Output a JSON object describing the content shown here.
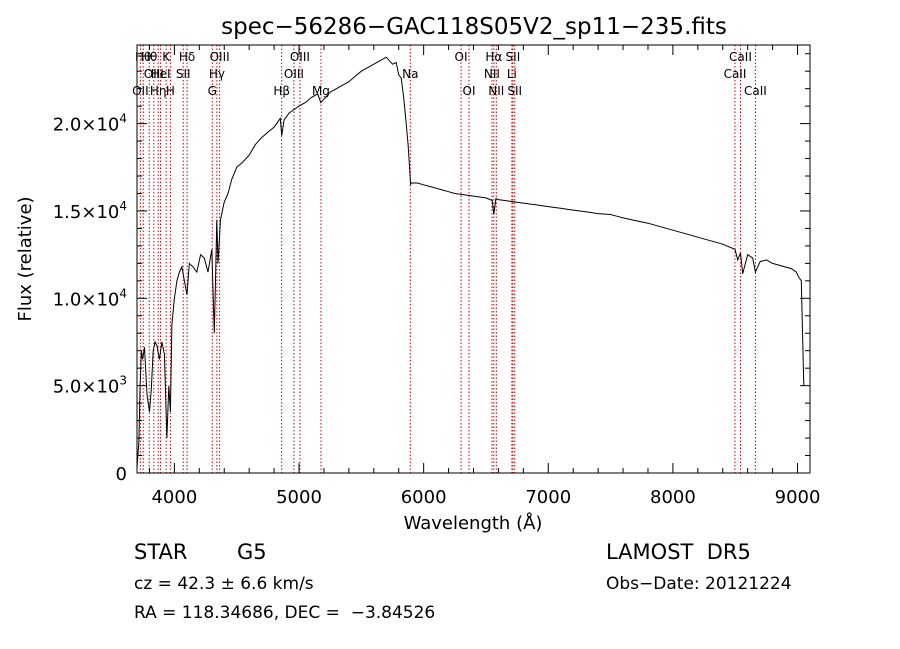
{
  "chart_data": {
    "type": "line",
    "title": "spec−56286−GAC118S05V2_sp11−235.fits",
    "xlabel": "Wavelength (Å)",
    "ylabel": "Flux (relative)",
    "xlim": [
      3700,
      9100
    ],
    "ylim": [
      0,
      24500
    ],
    "x_ticks": [
      {
        "value": 4000,
        "label": "4000"
      },
      {
        "value": 5000,
        "label": "5000"
      },
      {
        "value": 6000,
        "label": "6000"
      },
      {
        "value": 7000,
        "label": "7000"
      },
      {
        "value": 8000,
        "label": "8000"
      },
      {
        "value": 9000,
        "label": "9000"
      }
    ],
    "y_ticks": [
      {
        "value": 0,
        "mant": "0",
        "exp": ""
      },
      {
        "value": 5000,
        "mant": "5.0×10",
        "exp": "3"
      },
      {
        "value": 10000,
        "mant": "1.0×10",
        "exp": "4"
      },
      {
        "value": 15000,
        "mant": "1.5×10",
        "exp": "4"
      },
      {
        "value": 20000,
        "mant": "2.0×10",
        "exp": "4"
      }
    ],
    "series": [
      {
        "x": [
          3700,
          3715,
          3725,
          3735,
          3745,
          3760,
          3780,
          3800,
          3815,
          3830,
          3845,
          3860,
          3880,
          3900,
          3920,
          3940,
          3955,
          3968,
          3980,
          4000,
          4020,
          4040,
          4060,
          4080,
          4101,
          4120,
          4150,
          4180,
          4210,
          4240,
          4270,
          4300,
          4320,
          4330,
          4340,
          4350,
          4370,
          4400,
          4430,
          4460,
          4500,
          4550,
          4600,
          4650,
          4700,
          4750,
          4800,
          4850,
          4861,
          4880,
          4920,
          4960,
          5000,
          5050,
          5100,
          5150,
          5175,
          5200,
          5250,
          5300,
          5350,
          5400,
          5450,
          5500,
          5550,
          5600,
          5650,
          5700,
          5750,
          5780,
          5800,
          5820,
          5840,
          5860,
          5875,
          5890,
          5895,
          5900,
          5910,
          5950,
          6000,
          6050,
          6100,
          6150,
          6200,
          6250,
          6300,
          6350,
          6400,
          6450,
          6500,
          6550,
          6563,
          6580,
          6600,
          6650,
          6700,
          6750,
          6800,
          6850,
          6900,
          6950,
          7000,
          7050,
          7100,
          7150,
          7200,
          7300,
          7400,
          7500,
          7550,
          7600,
          7700,
          7800,
          7900,
          8000,
          8100,
          8200,
          8300,
          8400,
          8498,
          8520,
          8542,
          8560,
          8600,
          8640,
          8662,
          8700,
          8750,
          8800,
          8850,
          8900,
          8950,
          8990,
          9010,
          9030,
          9050
        ],
        "y": [
          300,
          1800,
          5000,
          7000,
          6500,
          7200,
          4500,
          3500,
          4800,
          7000,
          7500,
          7300,
          6500,
          7500,
          6800,
          2000,
          5000,
          3500,
          8500,
          10000,
          11000,
          11500,
          11800,
          11000,
          10200,
          12000,
          11800,
          11500,
          12500,
          12300,
          11500,
          12800,
          8000,
          11000,
          14500,
          12000,
          14500,
          15500,
          16000,
          16800,
          17500,
          17800,
          18200,
          18800,
          19200,
          19500,
          19800,
          20300,
          19300,
          20200,
          20600,
          20800,
          21000,
          21200,
          21500,
          21700,
          21200,
          21400,
          21800,
          22000,
          22200,
          22400,
          22700,
          23000,
          23200,
          23400,
          23600,
          23800,
          23400,
          23500,
          22800,
          22600,
          21500,
          20000,
          18800,
          17200,
          16500,
          16600,
          16600,
          16600,
          16500,
          16400,
          16300,
          16200,
          16100,
          16000,
          15950,
          15900,
          15850,
          15800,
          15750,
          15600,
          14800,
          15700,
          15650,
          15600,
          15550,
          15500,
          15450,
          15400,
          15350,
          15300,
          15250,
          15200,
          15150,
          15100,
          15050,
          14950,
          14850,
          14800,
          14700,
          14600,
          14450,
          14300,
          14100,
          13900,
          13700,
          13500,
          13300,
          13100,
          12800,
          12200,
          12600,
          11400,
          12500,
          12300,
          11500,
          12100,
          12200,
          12000,
          11900,
          11800,
          11700,
          11500,
          11200,
          11000,
          5000
        ]
      }
    ],
    "lines": [
      {
        "x": 3727,
        "row": 2,
        "label": "OII",
        "label_end": 3760
      },
      {
        "x": 3750,
        "row": 0,
        "label": "Hθ",
        "label_end": 3770
      },
      {
        "x": 3798,
        "row": 0,
        "label": "Hθ"
      },
      {
        "x": 3835,
        "row": 1,
        "label": "OIII"
      },
      {
        "x": 3870,
        "row": 2,
        "label": "Hη"
      },
      {
        "x": 3889,
        "row": 1,
        "label": "HeI"
      },
      {
        "x": 3934,
        "row": 0,
        "label": "K"
      },
      {
        "x": 3968,
        "row": 2,
        "label": "H"
      },
      {
        "x": 4071,
        "row": 1,
        "label": "SII"
      },
      {
        "x": 4102,
        "row": 0,
        "label": "Hδ"
      },
      {
        "x": 4304,
        "row": 2,
        "label": "G"
      },
      {
        "x": 4341,
        "row": 1,
        "label": "Hγ"
      },
      {
        "x": 4363,
        "row": 0,
        "label": "OIII"
      },
      {
        "x": 4861,
        "row": 2,
        "label": "Hβ"
      },
      {
        "x": 4959,
        "row": 1,
        "label": "OIII"
      },
      {
        "x": 5007,
        "row": 0,
        "label": "OIII"
      },
      {
        "x": 5176,
        "row": 2,
        "label": "Mg"
      },
      {
        "x": 5893,
        "row": 1,
        "label": "Na"
      },
      {
        "x": 6300,
        "row": 0,
        "label": "OI"
      },
      {
        "x": 6364,
        "row": 2,
        "label": "OI"
      },
      {
        "x": 6548,
        "row": 1,
        "label": "NII"
      },
      {
        "x": 6563,
        "row": 0,
        "label": "Hα"
      },
      {
        "x": 6583,
        "row": 2,
        "label": "NII"
      },
      {
        "x": 6708,
        "row": 1,
        "label": "Li"
      },
      {
        "x": 6716,
        "row": 0,
        "label": "SII"
      },
      {
        "x": 6731,
        "row": 2,
        "label": "SII"
      },
      {
        "x": 8498,
        "row": 1,
        "label": "CaII"
      },
      {
        "x": 8542,
        "row": 0,
        "label": "CaII"
      },
      {
        "x": 8662,
        "row": 2,
        "label": "CaII"
      }
    ],
    "line_color": "#cc0000",
    "series_color": "#000000"
  },
  "info": {
    "object_class": "STAR",
    "subclass": "G5",
    "redshift": "cz = 42.3 ± 6.6 km/s",
    "coords": "RA = 118.34686, DEC =  −3.84526",
    "survey": "LAMOST  DR5",
    "obs_date": "Obs−Date: 20121224"
  }
}
